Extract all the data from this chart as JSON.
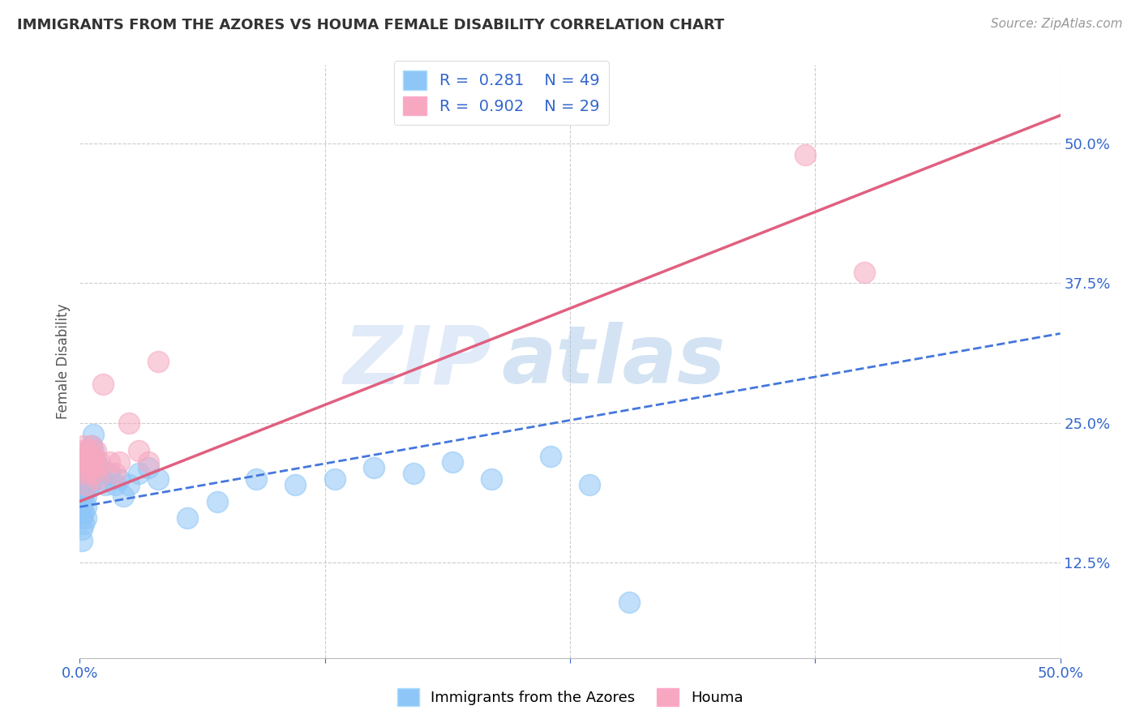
{
  "title": "IMMIGRANTS FROM THE AZORES VS HOUMA FEMALE DISABILITY CORRELATION CHART",
  "source": "Source: ZipAtlas.com",
  "ylabel": "Female Disability",
  "xlim": [
    0.0,
    0.5
  ],
  "ylim": [
    0.04,
    0.57
  ],
  "y_ticks_right": [
    0.125,
    0.25,
    0.375,
    0.5
  ],
  "y_tick_labels_right": [
    "12.5%",
    "25.0%",
    "37.5%",
    "50.0%"
  ],
  "series1_label": "Immigrants from the Azores",
  "series2_label": "Houma",
  "series1_R": 0.281,
  "series1_N": 49,
  "series2_R": 0.902,
  "series2_N": 29,
  "series1_color": "#8ec6f7",
  "series2_color": "#f7a8c0",
  "series1_line_color": "#4477dd",
  "series2_line_color": "#e06080",
  "watermark_zip": "ZIP",
  "watermark_atlas": "atlas",
  "background_color": "#ffffff",
  "grid_color": "#cccccc",
  "blue_x": [
    0.001,
    0.001,
    0.001,
    0.001,
    0.001,
    0.002,
    0.002,
    0.002,
    0.002,
    0.003,
    0.003,
    0.003,
    0.003,
    0.003,
    0.004,
    0.004,
    0.004,
    0.005,
    0.005,
    0.005,
    0.006,
    0.006,
    0.007,
    0.007,
    0.008,
    0.009,
    0.01,
    0.011,
    0.013,
    0.015,
    0.018,
    0.02,
    0.022,
    0.025,
    0.03,
    0.035,
    0.04,
    0.055,
    0.07,
    0.09,
    0.11,
    0.13,
    0.15,
    0.17,
    0.19,
    0.21,
    0.24,
    0.26,
    0.28
  ],
  "blue_y": [
    0.185,
    0.175,
    0.165,
    0.155,
    0.145,
    0.195,
    0.185,
    0.17,
    0.16,
    0.2,
    0.195,
    0.185,
    0.175,
    0.165,
    0.215,
    0.205,
    0.195,
    0.22,
    0.21,
    0.195,
    0.23,
    0.22,
    0.24,
    0.225,
    0.215,
    0.205,
    0.21,
    0.2,
    0.195,
    0.205,
    0.195,
    0.2,
    0.185,
    0.195,
    0.205,
    0.21,
    0.2,
    0.165,
    0.18,
    0.2,
    0.195,
    0.2,
    0.21,
    0.205,
    0.215,
    0.2,
    0.22,
    0.195,
    0.09
  ],
  "pink_x": [
    0.001,
    0.001,
    0.002,
    0.002,
    0.003,
    0.003,
    0.003,
    0.004,
    0.004,
    0.005,
    0.005,
    0.006,
    0.006,
    0.007,
    0.007,
    0.008,
    0.008,
    0.009,
    0.01,
    0.012,
    0.015,
    0.018,
    0.02,
    0.025,
    0.03,
    0.035,
    0.04,
    0.37,
    0.4
  ],
  "pink_y": [
    0.215,
    0.225,
    0.21,
    0.23,
    0.22,
    0.205,
    0.195,
    0.225,
    0.215,
    0.22,
    0.21,
    0.23,
    0.215,
    0.22,
    0.205,
    0.225,
    0.21,
    0.2,
    0.215,
    0.285,
    0.215,
    0.205,
    0.215,
    0.25,
    0.225,
    0.215,
    0.305,
    0.49,
    0.385
  ],
  "pink_line_x0": 0.0,
  "pink_line_y0": 0.18,
  "pink_line_x1": 0.5,
  "pink_line_y1": 0.525,
  "blue_line_x0": 0.0,
  "blue_line_y0": 0.175,
  "blue_line_x1": 0.5,
  "blue_line_y1": 0.33
}
